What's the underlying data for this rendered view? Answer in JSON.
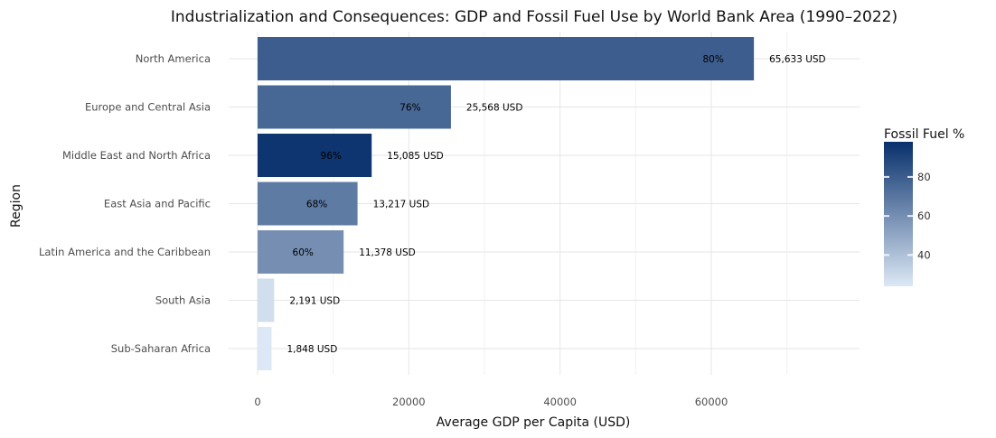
{
  "chart_data": {
    "type": "bar",
    "orientation": "horizontal",
    "title": "Industrialization and Consequences: GDP and Fossil Fuel Use by World Bank Area (1990–2022)",
    "xlabel": "Average GDP per Capita (USD)",
    "ylabel": "Region",
    "xlim": [
      0,
      79000
    ],
    "xticks": [
      0,
      20000,
      40000,
      60000
    ],
    "xtick_labels": [
      "0",
      "20000",
      "40000",
      "60000"
    ],
    "grid": true,
    "categories": [
      "North America",
      "Europe and Central Asia",
      "Middle East and North Africa",
      "East Asia and Pacific",
      "Latin America and the Caribbean",
      "South Asia",
      "Sub-Saharan Africa"
    ],
    "values": [
      65633,
      25568,
      15085,
      13217,
      11378,
      2191,
      1848
    ],
    "value_labels": [
      "65,633 USD",
      "25,568 USD",
      "15,085 USD",
      "13,217 USD",
      "11,378 USD",
      "2,191 USD",
      "1,848 USD"
    ],
    "fossil_fuel_pct": [
      80,
      76,
      96,
      68,
      60,
      28,
      24
    ],
    "fossil_fuel_labels": [
      "80%",
      "76%",
      "96%",
      "68%",
      "60%",
      "",
      ""
    ],
    "legend": {
      "title": "Fossil Fuel %",
      "placement": "right",
      "range": [
        24,
        98
      ],
      "ticks": [
        40,
        60,
        80
      ],
      "tick_labels": [
        "40",
        "60",
        "80"
      ],
      "color_low": "#dce8f5",
      "color_high": "#08306b"
    },
    "colors": {
      "gridline": "#e6e6e6",
      "background": "#ffffff"
    }
  }
}
